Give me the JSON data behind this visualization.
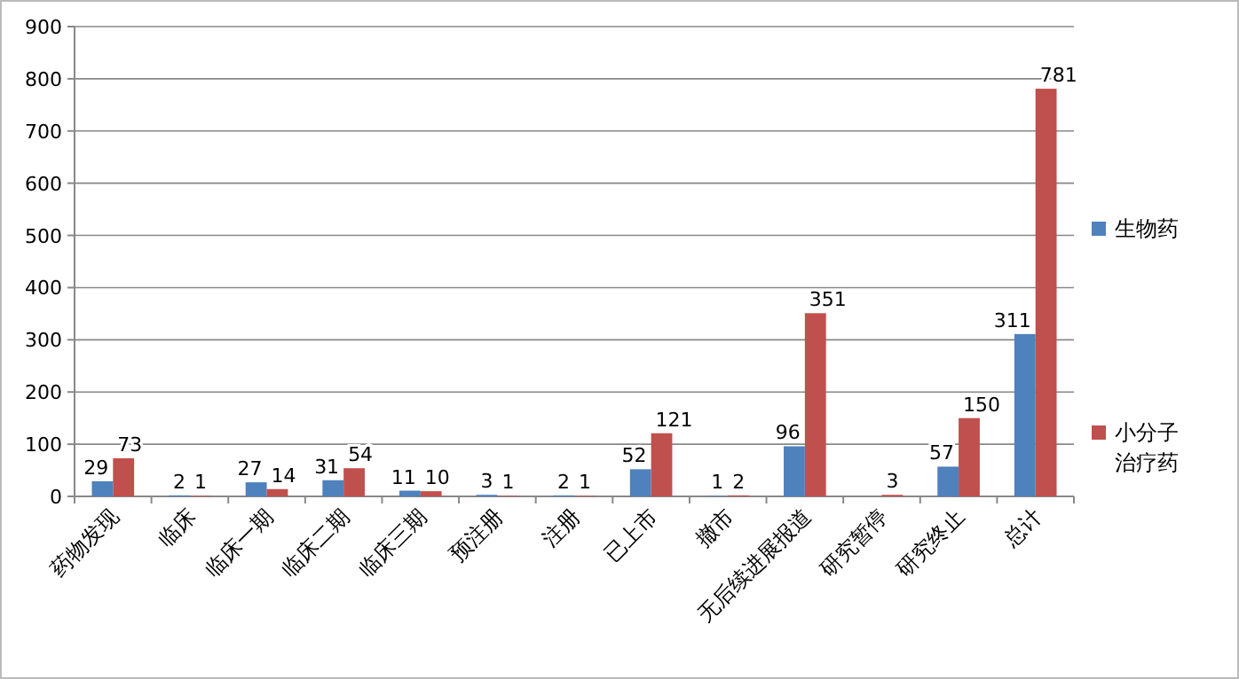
{
  "chart_data": {
    "type": "bar",
    "categories": [
      "药物发现",
      "临床",
      "临床一期",
      "临床二期",
      "临床三期",
      "预注册",
      "注册",
      "已上市",
      "撤市",
      "无后续进展报道",
      "研究暂停",
      "研究终止",
      "总计"
    ],
    "series": [
      {
        "name": "生物药",
        "color": "#4f81bd",
        "values": [
          29,
          2,
          27,
          31,
          11,
          3,
          2,
          52,
          1,
          96,
          null,
          57,
          311
        ]
      },
      {
        "name": "小分子治疗药",
        "color": "#c0504d",
        "values": [
          73,
          1,
          14,
          54,
          10,
          1,
          1,
          121,
          2,
          351,
          3,
          150,
          781
        ]
      }
    ],
    "ylim": [
      0,
      900
    ],
    "yticks": [
      0,
      100,
      200,
      300,
      400,
      500,
      600,
      700,
      800,
      900
    ],
    "grid": "y",
    "legend": "right",
    "data_labels": true
  }
}
